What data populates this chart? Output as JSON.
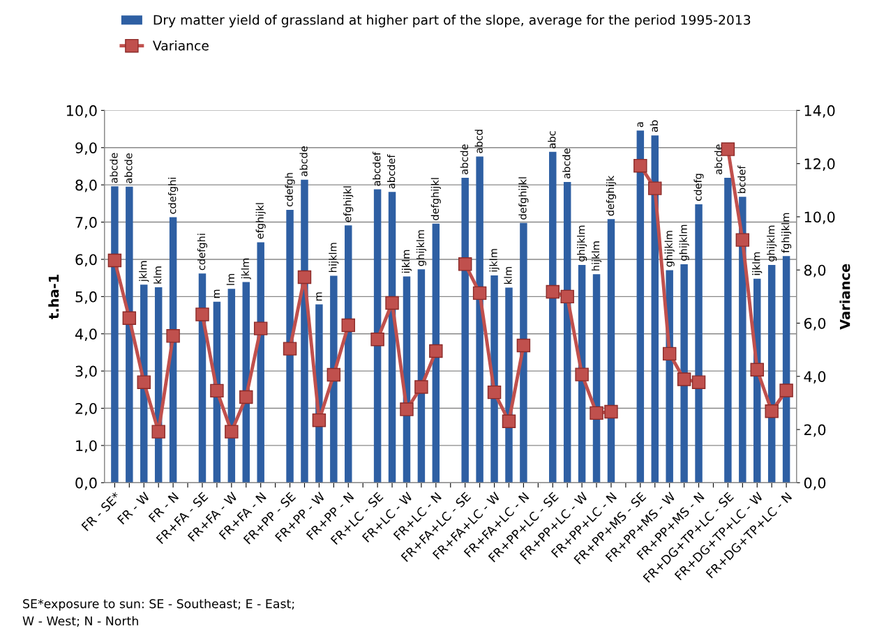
{
  "chart_data": {
    "type": "bar",
    "legend": "top",
    "grid": "y",
    "ylabel": "t.ha-1",
    "y2label": "Variance",
    "categories": [
      "FR - SE*",
      null,
      "FR - W",
      null,
      "FR - N",
      null,
      "FR+FA - SE",
      null,
      "FR+FA - W",
      null,
      "FR+FA - N",
      null,
      "FR+PP - SE",
      null,
      "FR+PP - W",
      null,
      "FR+PP - N",
      null,
      "FR+LC - SE",
      null,
      "FR+LC - W",
      null,
      "FR+LC - N",
      null,
      "FR+FA+LC - SE",
      null,
      "FR+FA+LC - W",
      null,
      "FR+FA+LC - N",
      null,
      "FR+PP+LC - SE",
      null,
      "FR+PP+LC - W",
      null,
      "FR+PP+LC - N",
      null,
      "FR+PP+MS - SE",
      null,
      "FR+PP+MS - W",
      null,
      "FR+PP+MS - N",
      null,
      "FR+DG+TP+LC - SE",
      null,
      "FR+DG+TP+LC - W",
      null,
      "FR+DG+TP+LC - N"
    ],
    "ylim": [
      0,
      10
    ],
    "yticks": [
      {
        "value": 0,
        "label": "0,0"
      },
      {
        "value": 1,
        "label": "1,0"
      },
      {
        "value": 2,
        "label": "2,0"
      },
      {
        "value": 3,
        "label": "3,0"
      },
      {
        "value": 4,
        "label": "4,0"
      },
      {
        "value": 5,
        "label": "5,0"
      },
      {
        "value": 6,
        "label": "6,0"
      },
      {
        "value": 7,
        "label": "7,0"
      },
      {
        "value": 8,
        "label": "8,0"
      },
      {
        "value": 9,
        "label": "9,0"
      },
      {
        "value": 10,
        "label": "10,0"
      }
    ],
    "y2lim": [
      0,
      14
    ],
    "y2ticks": [
      {
        "value": 0,
        "label": "0,0"
      },
      {
        "value": 2,
        "label": "2,0"
      },
      {
        "value": 4,
        "label": "4,0"
      },
      {
        "value": 6,
        "label": "6,0"
      },
      {
        "value": 8,
        "label": "8,0"
      },
      {
        "value": 10,
        "label": "10,0"
      },
      {
        "value": 12,
        "label": "12,0"
      },
      {
        "value": 14,
        "label": "14,0"
      }
    ],
    "series": [
      {
        "name": "Dry matter yield of grassland at higher part of the slope, average for the period 1995-2013",
        "color": "#2e5fa3",
        "values": [
          7.96,
          7.95,
          5.32,
          5.25,
          7.13,
          null,
          5.62,
          4.86,
          5.21,
          5.39,
          6.46,
          null,
          7.33,
          8.14,
          4.79,
          5.56,
          6.91,
          null,
          7.88,
          7.81,
          5.54,
          5.73,
          6.96,
          null,
          8.19,
          8.76,
          5.57,
          5.24,
          6.98,
          null,
          8.89,
          8.08,
          5.85,
          5.6,
          7.08,
          null,
          9.46,
          9.33,
          5.71,
          5.87,
          7.48,
          null,
          8.19,
          7.68,
          5.48,
          5.85,
          6.09
        ],
        "value_labels": [
          "abcde",
          "abcde",
          "jklm",
          "klm",
          "cdefghi",
          null,
          "cdefghi",
          "m",
          "lm",
          "jklm",
          "efghijkl",
          null,
          "cdefgh",
          "abcde",
          "m",
          "hijklm",
          "efghijkl",
          null,
          "abcdef",
          "abcdef",
          "ijklm",
          "ghijklm",
          "defghijkl",
          null,
          "abcde",
          "abcd",
          "ijklm",
          "klm",
          "defghijkl",
          null,
          "abc",
          "abcde",
          "ghijklm",
          "hijklm",
          "defghijk",
          null,
          "a",
          "ab",
          "ghijklm",
          "ghijklm",
          "cdefg",
          null,
          "abcde",
          "bcdef",
          "ijklm",
          "ghijklm",
          "fghijklm"
        ]
      },
      {
        "name": "Variance",
        "type": "line",
        "axis": "y2",
        "color": "#c0504d",
        "marker": "square",
        "line_style": "solid",
        "values": [
          8.36,
          6.19,
          3.78,
          1.92,
          5.52,
          null,
          6.33,
          3.46,
          1.92,
          3.22,
          5.8,
          null,
          5.04,
          7.73,
          2.35,
          4.06,
          5.92,
          null,
          5.39,
          6.76,
          2.76,
          3.6,
          4.95,
          null,
          8.22,
          7.13,
          3.4,
          2.31,
          5.16,
          null,
          7.18,
          7.0,
          4.07,
          2.62,
          2.67,
          null,
          11.92,
          11.07,
          4.85,
          3.89,
          3.78,
          null,
          12.54,
          9.13,
          4.25,
          2.69,
          3.47
        ]
      }
    ],
    "annotations": [
      "SE*exposure to sun: SE - Southeast; E - East;\nW - West; N - North"
    ]
  }
}
